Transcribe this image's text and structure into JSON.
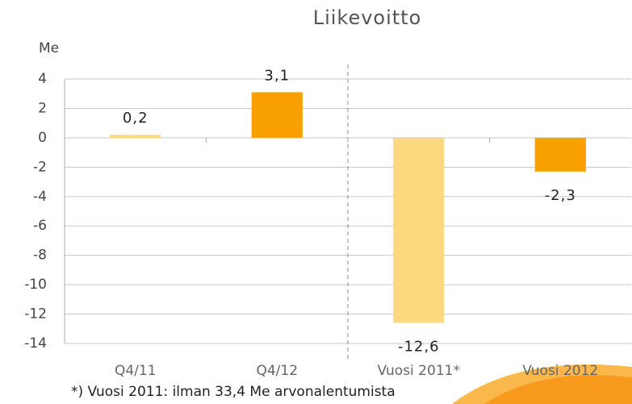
{
  "chart_data": {
    "type": "bar",
    "title": "Liikevoitto",
    "y_label": "Me",
    "categories": [
      "Q4/11",
      "Q4/12",
      "Vuosi 2011*",
      "Vuosi 2012"
    ],
    "values": [
      0.2,
      3.1,
      -12.6,
      -2.3
    ],
    "value_labels": [
      "0,2",
      "3,1",
      "-12,6",
      "-2,3"
    ],
    "colors": [
      "#fcd97e",
      "#f7a000",
      "#fcd97e",
      "#f7a000"
    ],
    "ylim": [
      -14,
      4
    ],
    "yticks": [
      4,
      2,
      0,
      -2,
      -4,
      -6,
      -8,
      -10,
      -12,
      -14
    ],
    "grid": true,
    "footnote": "*) Vuosi 2011: ilman 33,4 Me arvonalentumista"
  }
}
